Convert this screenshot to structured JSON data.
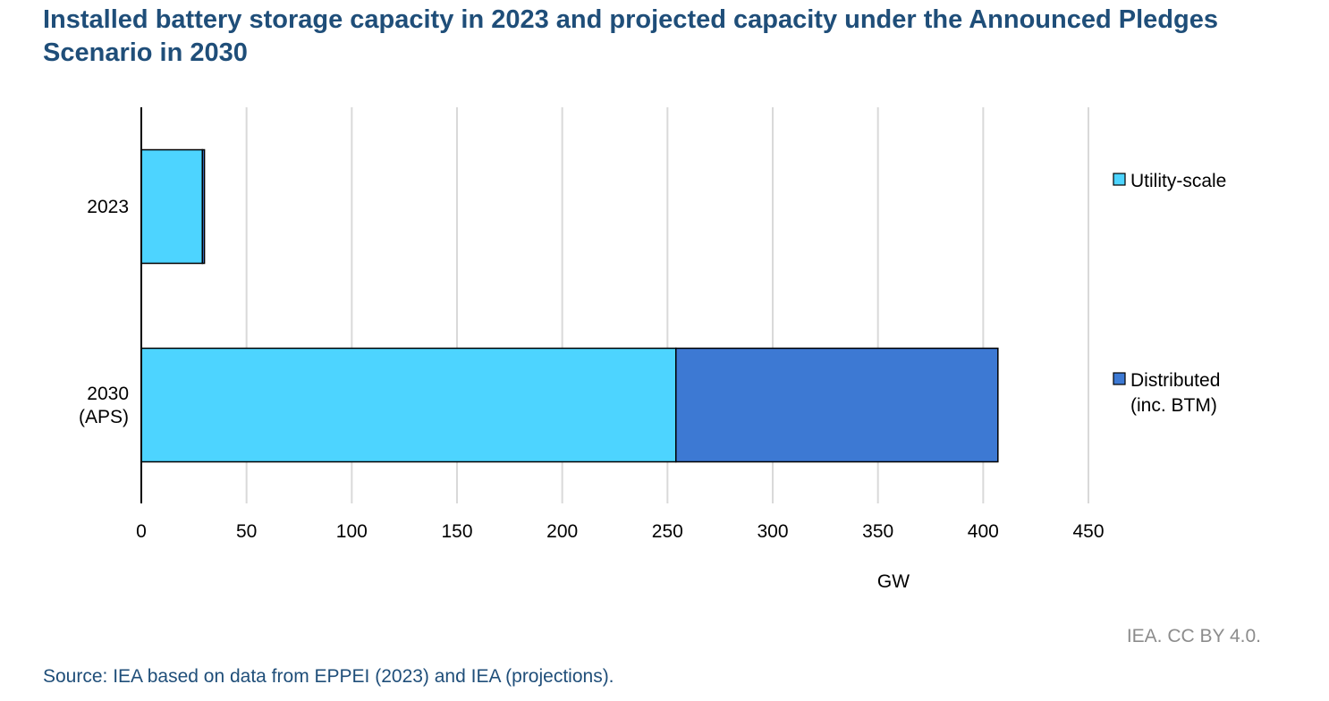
{
  "title": "Installed battery storage capacity in 2023 and projected capacity under the Announced Pledges Scenario in 2030",
  "credit": "IEA. CC BY 4.0.",
  "source": "Source: IEA based on data from EPPEI (2023) and IEA (projections).",
  "chart_data": {
    "type": "bar",
    "orientation": "horizontal",
    "stacked": true,
    "categories": [
      [
        "2023"
      ],
      [
        "2030",
        "(APS)"
      ]
    ],
    "series": [
      {
        "name": "Utility-scale",
        "color": "#4dd4ff",
        "values": [
          29,
          254
        ]
      },
      {
        "name": "Distributed (inc. BTM)",
        "legend_lines": [
          "Distributed",
          "(inc. BTM)"
        ],
        "color": "#3d79d3",
        "values": [
          1,
          153
        ]
      }
    ],
    "xlabel": "GW",
    "xlim": [
      0,
      450
    ],
    "xticks": [
      0,
      50,
      100,
      150,
      200,
      250,
      300,
      350,
      400,
      450
    ],
    "grid": "vertical",
    "legend": "right"
  }
}
